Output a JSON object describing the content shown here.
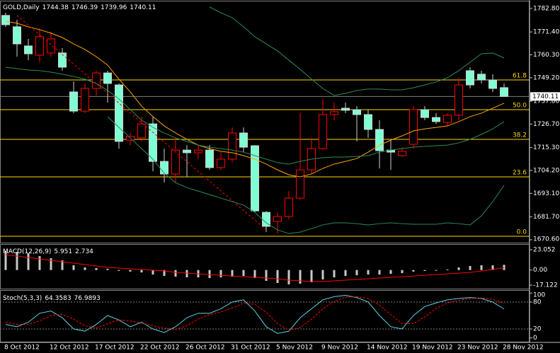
{
  "chart_data": [
    {
      "type": "candlestick",
      "title": "GOLD,Daily",
      "categories": [
        "8 Oct 2012",
        null,
        null,
        null,
        "12 Oct 2012",
        null,
        null,
        null,
        "17 Oct 2012",
        null,
        null,
        null,
        "22 Oct 2012",
        null,
        null,
        null,
        "26 Oct 2012",
        null,
        null,
        null,
        "31 Oct 2012",
        null,
        null,
        null,
        "5 Nov 2012",
        null,
        null,
        null,
        "9 Nov 2012",
        null,
        null,
        null,
        "14 Nov 2012",
        null,
        null,
        null,
        "19 Nov 2012",
        null,
        null,
        null,
        "23 Nov 2012",
        null,
        null,
        null,
        "28 Nov 2012"
      ],
      "open": [
        1779.4,
        1773.9,
        1764.6,
        1760.1,
        1761.2,
        1761.2,
        1742.3,
        1733.0,
        1744.0,
        1751.5,
        1745.7,
        1718.9,
        1720.0,
        1726.8,
        1708.6,
        1702.5,
        1714.1,
        1712.8,
        1714.1,
        1705.6,
        1709.7,
        1722.4,
        1716.2,
        1683.9,
        1679.5,
        1681.9,
        1690.8,
        1704.5,
        1714.8,
        1731.3,
        1734.4,
        1733.7,
        1731.3,
        1724.1,
        1714.1,
        1711.4,
        1716.9,
        1733.7,
        1729.9,
        1727.5,
        1731.0,
        1752.6,
        1750.9,
        1748.1,
        1744.38
      ],
      "high": [
        1780.7,
        1777.3,
        1768.0,
        1773.2,
        1771.5,
        1763.6,
        1747.4,
        1746.4,
        1752.6,
        1752.6,
        1746.4,
        1722.4,
        1730.3,
        1730.3,
        1714.8,
        1720.0,
        1716.5,
        1716.5,
        1716.5,
        1713.1,
        1725.1,
        1725.1,
        1716.5,
        1684.6,
        1683.9,
        1694.2,
        1732.0,
        1720.0,
        1738.9,
        1737.1,
        1737.1,
        1735.4,
        1733.7,
        1728.6,
        1718.9,
        1715.5,
        1735.4,
        1735.4,
        1732.0,
        1732.0,
        1749.2,
        1754.3,
        1752.6,
        1750.9,
        1746.39
      ],
      "low": [
        1773.9,
        1759.4,
        1757.7,
        1756.7,
        1759.4,
        1752.6,
        1732.0,
        1732.0,
        1740.6,
        1737.1,
        1714.8,
        1716.5,
        1718.3,
        1703.8,
        1698.3,
        1698.3,
        1701.1,
        1709.7,
        1704.5,
        1704.5,
        1708.0,
        1713.1,
        1683.9,
        1674.3,
        1673.6,
        1680.5,
        1690.1,
        1702.8,
        1714.1,
        1728.6,
        1732.0,
        1718.3,
        1720.0,
        1705.2,
        1704.5,
        1710.7,
        1714.8,
        1728.6,
        1726.8,
        1725.8,
        1728.6,
        1744.0,
        1746.4,
        1742.3,
        1739.96
      ],
      "close": [
        1774.9,
        1765.6,
        1760.8,
        1769.1,
        1768.0,
        1754.3,
        1733.0,
        1744.0,
        1751.5,
        1746.4,
        1718.3,
        1720.7,
        1726.8,
        1708.6,
        1702.5,
        1714.1,
        1712.8,
        1714.1,
        1705.6,
        1709.7,
        1722.4,
        1715.5,
        1684.6,
        1677.1,
        1681.9,
        1690.8,
        1704.5,
        1714.8,
        1731.3,
        1732.7,
        1733.4,
        1731.3,
        1724.1,
        1713.8,
        1713.1,
        1713.5,
        1733.7,
        1729.9,
        1727.9,
        1731.0,
        1745.7,
        1745.7,
        1748.1,
        1744.0,
        1740.11
      ],
      "bull_color": "#ff0000",
      "bear_color": "#7fffd4",
      "bear_wick_color": "#d0d0d0",
      "price_line_color": "#808080",
      "series": [
        {
          "color": "#ffa500",
          "values": [
            1776.6,
            1775.6,
            1773.9,
            1772.5,
            1770.8,
            1768.7,
            1765.6,
            1762.9,
            1759.4,
            1755.3,
            1748.5,
            1742.3,
            1735.4,
            1730.3,
            1725.8,
            1722.4,
            1719.3,
            1716.5,
            1714.8,
            1713.5,
            1712.8,
            1711.4,
            1709.7,
            1707.3,
            1704.5,
            1702.1,
            1701.1,
            1702.5,
            1705.2,
            1707.3,
            1708.6,
            1710.0,
            1713.1,
            1716.5,
            1718.9,
            1721.0,
            1723.4,
            1724.4,
            1725.1,
            1725.8,
            1727.9,
            1730.3,
            1732.0,
            1734.4,
            1736.8
          ]
        },
        {
          "color": "#2e8b57",
          "values": [
            1754.3,
            1753.6,
            1752.9,
            1752.6,
            1751.9,
            1750.9,
            1749.8,
            1748.5,
            1746.4,
            1743.0,
            1738.9,
            1733.7,
            1728.6,
            1725.1,
            1722.4,
            1720.0,
            1718.3,
            1716.5,
            1715.5,
            1714.8,
            1714.1,
            1713.1,
            1711.4,
            1709.7,
            1708.0,
            1707.3,
            1708.6,
            1709.7,
            1710.4,
            1710.7,
            1710.7,
            1711.0,
            1711.4,
            1713.1,
            1714.1,
            1714.8,
            1715.5,
            1715.9,
            1716.2,
            1716.5,
            1717.6,
            1719.3,
            1721.7,
            1724.4,
            1727.9
          ]
        },
        {
          "color": "#2e8b57",
          "values": [
            null,
            null,
            null,
            null,
            null,
            null,
            null,
            null,
            null,
            1730.3,
            1725.1,
            1720.0,
            1714.8,
            1709.7,
            1702.8,
            1698.3,
            1695.9,
            1694.2,
            1692.5,
            1690.8,
            1689.1,
            1687.4,
            1683.9,
            1678.8,
            1675.4,
            1673.6,
            1674.3,
            1676.0,
            1677.8,
            1678.8,
            1678.8,
            1678.4,
            1677.8,
            1678.4,
            1678.8,
            1678.4,
            1678.1,
            1678.1,
            1678.1,
            1678.8,
            1678.4,
            1677.8,
            1682.2,
            1689.1,
            1697.0
          ]
        },
        {
          "color": "#2e8b57",
          "values": [
            null,
            null,
            null,
            null,
            null,
            null,
            null,
            null,
            null,
            null,
            null,
            null,
            null,
            null,
            null,
            null,
            null,
            null,
            1783.5,
            1780.7,
            1778.3,
            1773.9,
            1769.1,
            1765.6,
            1762.2,
            1757.7,
            1753.3,
            1748.5,
            1744.0,
            1740.6,
            1741.6,
            1743.0,
            1743.7,
            1743.7,
            1743.3,
            1743.3,
            1744.3,
            1745.7,
            1747.1,
            1749.2,
            1752.6,
            1756.7,
            1760.8,
            1761.2,
            1758.8
          ]
        }
      ],
      "trendline": {
        "color": "#ff0000",
        "bars": [
          1,
          23
        ],
        "values": [
          1779.4,
          1675.4
        ]
      },
      "fibonacci": {
        "color": "#ffd700",
        "levels": [
          61.8,
          {
            "value": 50,
            "label": "50.0"
          },
          38.2,
          23.6,
          {
            "value": 0,
            "label": "0.0"
          }
        ],
        "prices": [
          1748.1,
          1733.7,
          1719.3,
          1701.1,
          1672.3
        ]
      },
      "ylim": [
        1669.2,
        1786.2
      ],
      "yticks": [
        {
          "value": 1782.8,
          "label": "1782.80"
        },
        {
          "value": 1771.4,
          "label": "1771.40"
        },
        {
          "value": 1760.3,
          "label": "1760.30"
        },
        {
          "value": 1749.2,
          "label": "1749.20"
        },
        {
          "value": 1737.8,
          "label": "1737.80"
        },
        {
          "value": 1726.7,
          "label": "1726.70"
        },
        {
          "value": 1715.3,
          "label": "1715.30"
        },
        {
          "value": 1704.2,
          "label": "1704.20"
        },
        {
          "value": 1693.1,
          "label": "1693.10"
        },
        {
          "value": 1681.7,
          "label": "1681.70"
        },
        {
          "value": 1670.6,
          "label": "1670.60"
        }
      ]
    },
    {
      "type": "macd",
      "title": "MACD(12,26,9)",
      "color": "#c8c8c8",
      "values": [
        21.5,
        20.6,
        19.0,
        15.8,
        13.4,
        11.0,
        5.4,
        3.0,
        2.2,
        1.4,
        -1.0,
        -1.8,
        -2.7,
        -5.1,
        -6.7,
        -7.5,
        -8.3,
        -8.3,
        -9.1,
        -8.3,
        -7.5,
        -6.7,
        -9.1,
        -12.3,
        -14.7,
        -16.3,
        -15.5,
        -13.9,
        -10.7,
        -8.3,
        -6.7,
        -5.9,
        -5.1,
        -5.1,
        -4.3,
        -3.5,
        -1.8,
        -1.0,
        -0.2,
        0.6,
        3.0,
        4.6,
        5.4,
        5.4,
        5.951
      ],
      "signal": {
        "color": "#ff0000",
        "values": [
          17.4,
          15.8,
          14.2,
          12.6,
          11.0,
          9.4,
          7.8,
          6.2,
          4.6,
          3.0,
          2.2,
          1.4,
          0.6,
          -0.2,
          -1.0,
          -2.7,
          -3.5,
          -4.3,
          -5.1,
          -5.9,
          -6.7,
          -7.5,
          -8.3,
          -9.1,
          -9.9,
          -11.5,
          -12.3,
          -13.1,
          -13.1,
          -12.3,
          -11.5,
          -10.7,
          -9.9,
          -9.1,
          -8.3,
          -7.5,
          -6.7,
          -5.9,
          -5.1,
          -4.3,
          -3.5,
          -2.7,
          -1.0,
          0.6,
          2.734
        ]
      },
      "ylim": [
        -21.1,
        28.7
      ],
      "yticks": [
        23.052,
        {
          "value": 0,
          "label": "0.00"
        },
        -17.122
      ]
    },
    {
      "type": "stochastic",
      "title": "Stoch(5,3,3)",
      "series": [
        {
          "color": "#5fd3e6",
          "values": [
            30,
            25,
            35,
            55,
            60,
            45,
            20,
            15,
            30,
            50,
            40,
            25,
            35,
            20,
            12,
            25,
            45,
            55,
            55,
            65,
            80,
            85,
            60,
            25,
            10,
            15,
            45,
            65,
            85,
            92,
            95,
            90,
            80,
            50,
            25,
            20,
            50,
            70,
            78,
            85,
            88,
            90,
            88,
            80,
            64.3583
          ]
        },
        {
          "color": "#ff0000",
          "dashed": true,
          "values": [
            35,
            30,
            30,
            38,
            50,
            53,
            42,
            27,
            22,
            32,
            40,
            38,
            33,
            27,
            22,
            19,
            27,
            42,
            52,
            58,
            67,
            77,
            75,
            57,
            32,
            17,
            23,
            42,
            65,
            81,
            91,
            92,
            88,
            73,
            52,
            32,
            32,
            47,
            66,
            78,
            84,
            88,
            89,
            86,
            76.9893
          ]
        }
      ],
      "levels": [
        80,
        20
      ],
      "level_color": "#808080",
      "ylim": [
        -8.4,
        105.2
      ],
      "yticks": [
        100,
        80,
        20,
        0
      ]
    }
  ]
}
